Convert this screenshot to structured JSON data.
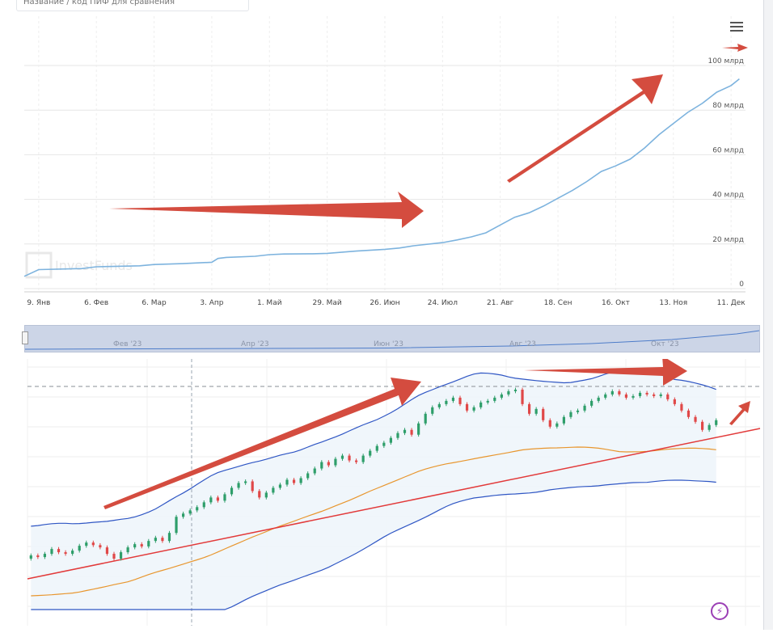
{
  "compare": {
    "placeholder": "Название / код ПИФ для сравнения"
  },
  "watermark": {
    "text": "InvestFunds"
  },
  "colors": {
    "line": "#7db3de",
    "arrow": "#d44c3f",
    "grid": "#e6e6e6",
    "bb_band": "#2f56c4",
    "trend": "#e23a3a",
    "ma": "#e8962e"
  },
  "icons": {
    "menu": "hamburger-menu-icon",
    "lightning": "lightning-icon",
    "watermark_logo": "investfunds-logo-icon"
  },
  "navigator": {
    "labels": [
      "Фев '23",
      "Апр '23",
      "Июн '23",
      "Авг '23",
      "Окт '23"
    ]
  },
  "chart_data": [
    {
      "type": "line",
      "title": "",
      "ylabel": "",
      "ylim": [
        0,
        100
      ],
      "y_unit": "млрд",
      "y_ticks": [
        "0",
        "20 млрд",
        "40 млрд",
        "60 млрд",
        "80 млрд",
        "100 млрд"
      ],
      "x_ticks": [
        "9. Янв",
        "6. Фев",
        "6. Мар",
        "3. Апр",
        "1. Май",
        "29. Май",
        "26. Июн",
        "24. Июл",
        "21. Авг",
        "18. Сен",
        "16. Окт",
        "13. Ноя",
        "11. Дек"
      ],
      "grid": true,
      "series": [
        {
          "x": [
            "2023-01-02",
            "2023-01-09",
            "2023-01-30",
            "2023-02-06",
            "2023-02-27",
            "2023-03-06",
            "2023-03-20",
            "2023-04-03",
            "2023-04-06",
            "2023-04-10",
            "2023-04-24",
            "2023-05-01",
            "2023-05-08",
            "2023-05-22",
            "2023-05-29",
            "2023-06-12",
            "2023-06-26",
            "2023-07-03",
            "2023-07-10",
            "2023-07-24",
            "2023-07-31",
            "2023-08-07",
            "2023-08-14",
            "2023-08-21",
            "2023-08-28",
            "2023-09-04",
            "2023-09-11",
            "2023-09-18",
            "2023-09-25",
            "2023-10-02",
            "2023-10-09",
            "2023-10-16",
            "2023-10-23",
            "2023-10-30",
            "2023-11-06",
            "2023-11-13",
            "2023-11-20",
            "2023-11-27",
            "2023-12-04",
            "2023-12-11",
            "2023-12-15"
          ],
          "y": [
            5.5,
            8.5,
            9,
            9.8,
            10.2,
            10.8,
            11.2,
            11.8,
            13.5,
            14,
            14.5,
            15.2,
            15.5,
            15.6,
            15.8,
            16.8,
            17.6,
            18.2,
            19.2,
            20.6,
            21.8,
            23.2,
            25,
            28.5,
            32,
            34,
            37,
            40.5,
            44,
            48,
            52.5,
            55,
            58,
            63,
            69,
            74,
            79,
            83,
            88,
            91,
            94
          ]
        }
      ]
    },
    {
      "type": "candlestick",
      "title": "",
      "x_ticks": [],
      "grid": true,
      "indicators": [
        "bollinger_upper",
        "bollinger_lower",
        "trend_line",
        "moving_average"
      ],
      "candles": [
        [
          100,
          101
        ],
        [
          101,
          100.5
        ],
        [
          100.5,
          101.5
        ],
        [
          101.5,
          103
        ],
        [
          103,
          102
        ],
        [
          102,
          101.5
        ],
        [
          101.5,
          102.5
        ],
        [
          102.5,
          104
        ],
        [
          104,
          105
        ],
        [
          105,
          104.2
        ],
        [
          104.2,
          103.5
        ],
        [
          103.5,
          101.5
        ],
        [
          101.5,
          100
        ],
        [
          100,
          102
        ],
        [
          102,
          103.5
        ],
        [
          103.5,
          104.5
        ],
        [
          104.5,
          103.8
        ],
        [
          103.8,
          105.5
        ],
        [
          105.5,
          106.5
        ],
        [
          106.5,
          105.5
        ],
        [
          105.5,
          108
        ],
        [
          108,
          113
        ],
        [
          113,
          114
        ],
        [
          114,
          115
        ],
        [
          115,
          116
        ],
        [
          116,
          117.5
        ],
        [
          117.5,
          119
        ],
        [
          119,
          118
        ],
        [
          118,
          120
        ],
        [
          120,
          122
        ],
        [
          122,
          123.5
        ],
        [
          123.5,
          124
        ],
        [
          124,
          121
        ],
        [
          121,
          119
        ],
        [
          119,
          120.5
        ],
        [
          120.5,
          122
        ],
        [
          122,
          123
        ],
        [
          123,
          124.5
        ],
        [
          124.5,
          123.5
        ],
        [
          123.5,
          125
        ],
        [
          125,
          126.5
        ],
        [
          126.5,
          128
        ],
        [
          128,
          130
        ],
        [
          130,
          129
        ],
        [
          129,
          131
        ],
        [
          131,
          132
        ],
        [
          132,
          130.5
        ],
        [
          130.5,
          130
        ],
        [
          130,
          132
        ],
        [
          132,
          133.5
        ],
        [
          133.5,
          135
        ],
        [
          135,
          136
        ],
        [
          136,
          137.5
        ],
        [
          137.5,
          139
        ],
        [
          139,
          140
        ],
        [
          140,
          138.5
        ],
        [
          138.5,
          142
        ],
        [
          142,
          145
        ],
        [
          145,
          147
        ],
        [
          147,
          148
        ],
        [
          148,
          149
        ],
        [
          149,
          150
        ],
        [
          150,
          148
        ],
        [
          148,
          146
        ],
        [
          146,
          147
        ],
        [
          147,
          148.5
        ],
        [
          148.5,
          149
        ],
        [
          149,
          150
        ],
        [
          150,
          151
        ],
        [
          151,
          152
        ],
        [
          152,
          152.5
        ],
        [
          152.5,
          148
        ],
        [
          148,
          145
        ],
        [
          145,
          146.5
        ],
        [
          146.5,
          143
        ],
        [
          143,
          141
        ],
        [
          141,
          142
        ],
        [
          142,
          144
        ],
        [
          144,
          145.5
        ],
        [
          145.5,
          146
        ],
        [
          146,
          147.5
        ],
        [
          147.5,
          149
        ],
        [
          149,
          150
        ],
        [
          150,
          151
        ],
        [
          151,
          152
        ],
        [
          152,
          151
        ],
        [
          151,
          150
        ],
        [
          150,
          150.5
        ],
        [
          150.5,
          151.5
        ],
        [
          151.5,
          151
        ],
        [
          151,
          150.5
        ],
        [
          150.5,
          151
        ],
        [
          151,
          149.5
        ],
        [
          149.5,
          148
        ],
        [
          148,
          146
        ],
        [
          146,
          144
        ],
        [
          144,
          142.5
        ],
        [
          142.5,
          140
        ],
        [
          140,
          141.5
        ],
        [
          141.5,
          143
        ]
      ]
    }
  ]
}
